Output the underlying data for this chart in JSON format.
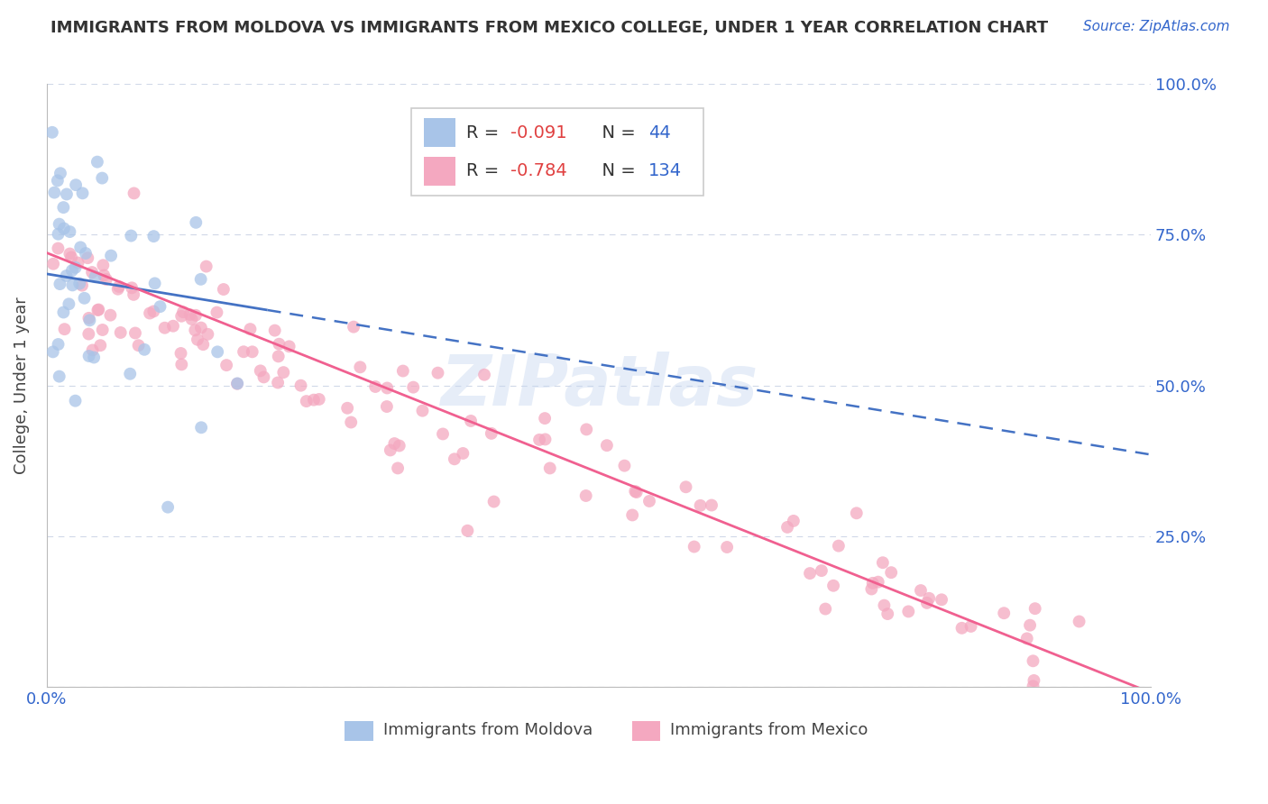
{
  "title": "IMMIGRANTS FROM MOLDOVA VS IMMIGRANTS FROM MEXICO COLLEGE, UNDER 1 YEAR CORRELATION CHART",
  "source": "Source: ZipAtlas.com",
  "ylabel": "College, Under 1 year",
  "watermark": "ZIPatlas",
  "moldova_color": "#a8c4e8",
  "mexico_color": "#f4a8c0",
  "moldova_line_color": "#4472c4",
  "mexico_line_color": "#f06090",
  "r_color": "#e04040",
  "n_color": "#3366cc",
  "tick_color": "#3366cc",
  "moldova_R": -0.091,
  "moldova_N": 44,
  "mexico_R": -0.784,
  "mexico_N": 134,
  "bottom_legend_moldova": "Immigrants from Moldova",
  "bottom_legend_mexico": "Immigrants from Mexico"
}
